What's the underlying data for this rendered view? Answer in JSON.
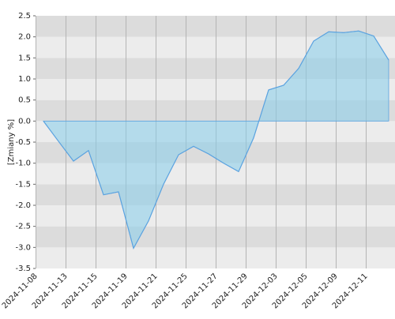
{
  "chart_data": {
    "type": "area",
    "y_label": "[Zmiany %]",
    "categories": [
      "2024-11-08",
      null,
      "2024-11-13",
      null,
      "2024-11-15",
      null,
      "2024-11-19",
      null,
      "2024-11-21",
      null,
      "2024-11-25",
      null,
      "2024-11-27",
      null,
      "2024-11-29",
      null,
      "2024-12-03",
      null,
      "2024-12-05",
      null,
      "2024-12-09",
      null,
      "2024-12-11",
      null
    ],
    "values": [
      0.0,
      -0.48,
      -0.95,
      -0.7,
      -1.75,
      -1.68,
      -3.02,
      -2.37,
      -1.5,
      -0.8,
      -0.6,
      -0.78,
      -1.0,
      -1.2,
      -0.4,
      0.74,
      0.85,
      1.25,
      1.9,
      2.12,
      2.1,
      2.14,
      2.02,
      1.45
    ],
    "color": "#5ba3e0",
    "ylim": [
      -3.5,
      2.5
    ],
    "yticks": [
      {
        "value": -3.5,
        "label": "-3.5"
      },
      {
        "value": -3,
        "label": "-3.0"
      },
      -2.5,
      {
        "value": -2,
        "label": "-2.0"
      },
      -1.5,
      {
        "value": -1,
        "label": "-1.0"
      },
      -0.5,
      {
        "value": 0,
        "label": "0.0"
      },
      0.5,
      {
        "value": 1,
        "label": "1.0"
      },
      1.5,
      {
        "value": 2,
        "label": "2.0"
      },
      2.5
    ],
    "grid": true
  }
}
